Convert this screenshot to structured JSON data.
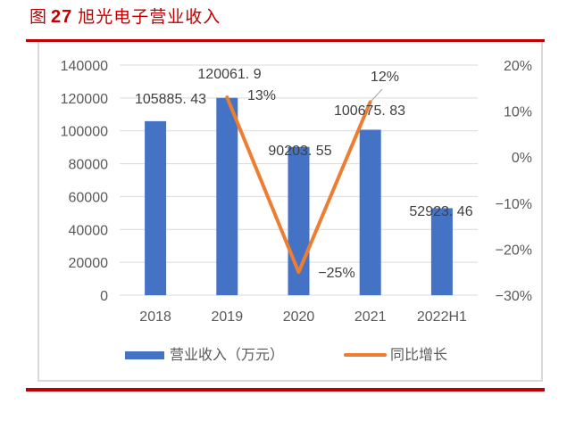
{
  "header": {
    "figure_prefix": "图",
    "figure_number": "27",
    "figure_title": "旭光电子营业收入"
  },
  "colors": {
    "accent_red": "#c00000",
    "bar_blue": "#4472c4",
    "line_orange": "#ed7d31",
    "gridline": "#d9d9d9",
    "axis_text": "#595959"
  },
  "legend": {
    "bar_label": "营业收入（万元）",
    "line_label": "同比增长"
  },
  "chart_data": {
    "type": "bar",
    "title": "旭光电子营业收入",
    "categories": [
      "2018",
      "2019",
      "2020",
      "2021",
      "2022H1"
    ],
    "series": [
      {
        "name": "营业收入（万元）",
        "type": "bar",
        "axis": "left",
        "values": [
          105885.43,
          120061.9,
          90203.55,
          100675.83,
          52923.46
        ],
        "labels": [
          "105885.43",
          "120061.9",
          "90203.55",
          "100675.83",
          "52923.46"
        ]
      },
      {
        "name": "同比增长",
        "type": "line",
        "axis": "right",
        "values": [
          null,
          0.13,
          -0.25,
          0.12,
          null
        ],
        "labels": [
          "",
          "13%",
          "-25%",
          "12%",
          ""
        ]
      }
    ],
    "y_left": {
      "ylim": [
        0,
        140000
      ],
      "ticks": [
        "0",
        "20000",
        "40000",
        "60000",
        "80000",
        "100000",
        "120000",
        "140000"
      ]
    },
    "y_right": {
      "ylim": [
        -0.3,
        0.2
      ],
      "ticks": [
        "-30%",
        "-20%",
        "-10%",
        "0%",
        "10%",
        "20%"
      ]
    },
    "xlabel": "",
    "ylabel": "",
    "grid": true,
    "legend_position": "bottom"
  }
}
